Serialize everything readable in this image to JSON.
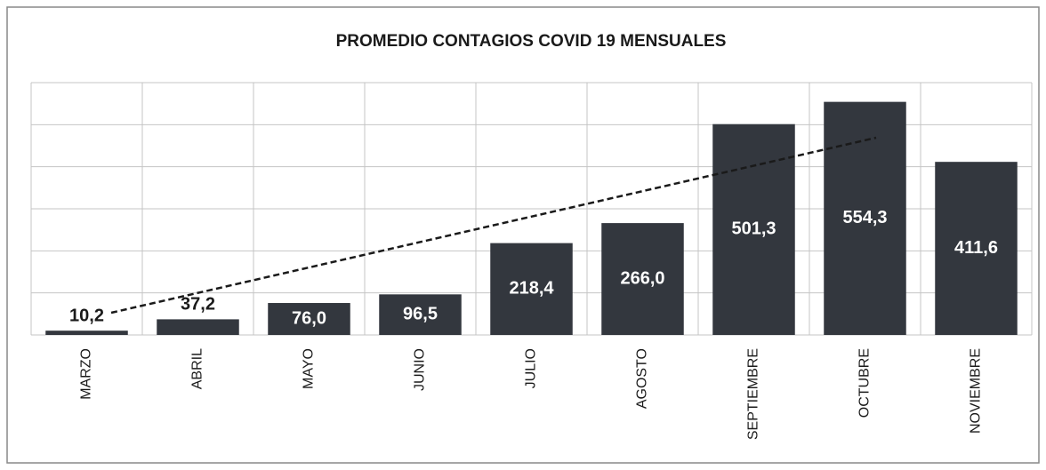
{
  "chart_data": {
    "type": "bar",
    "title": "PROMEDIO CONTAGIOS COVID 19 MENSUALES",
    "categories": [
      "MARZO",
      "ABRIL",
      "MAYO",
      "JUNIO",
      "JULIO",
      "AGOSTO",
      "SEPTIEMBRE",
      "OCTUBRE",
      "NOVIEMBRE"
    ],
    "values": [
      10.2,
      37.2,
      76.0,
      96.5,
      218.4,
      266.0,
      501.3,
      554.3,
      411.6
    ],
    "value_labels": [
      "10,2",
      "37,2",
      "76,0",
      "96,5",
      "218,4",
      "266,0",
      "501,3",
      "554,3",
      "411,6"
    ],
    "color": "#33373e",
    "ylim": [
      0,
      600
    ],
    "yticks": [
      0,
      100,
      200,
      300,
      400,
      500,
      600
    ],
    "grid": true
  }
}
